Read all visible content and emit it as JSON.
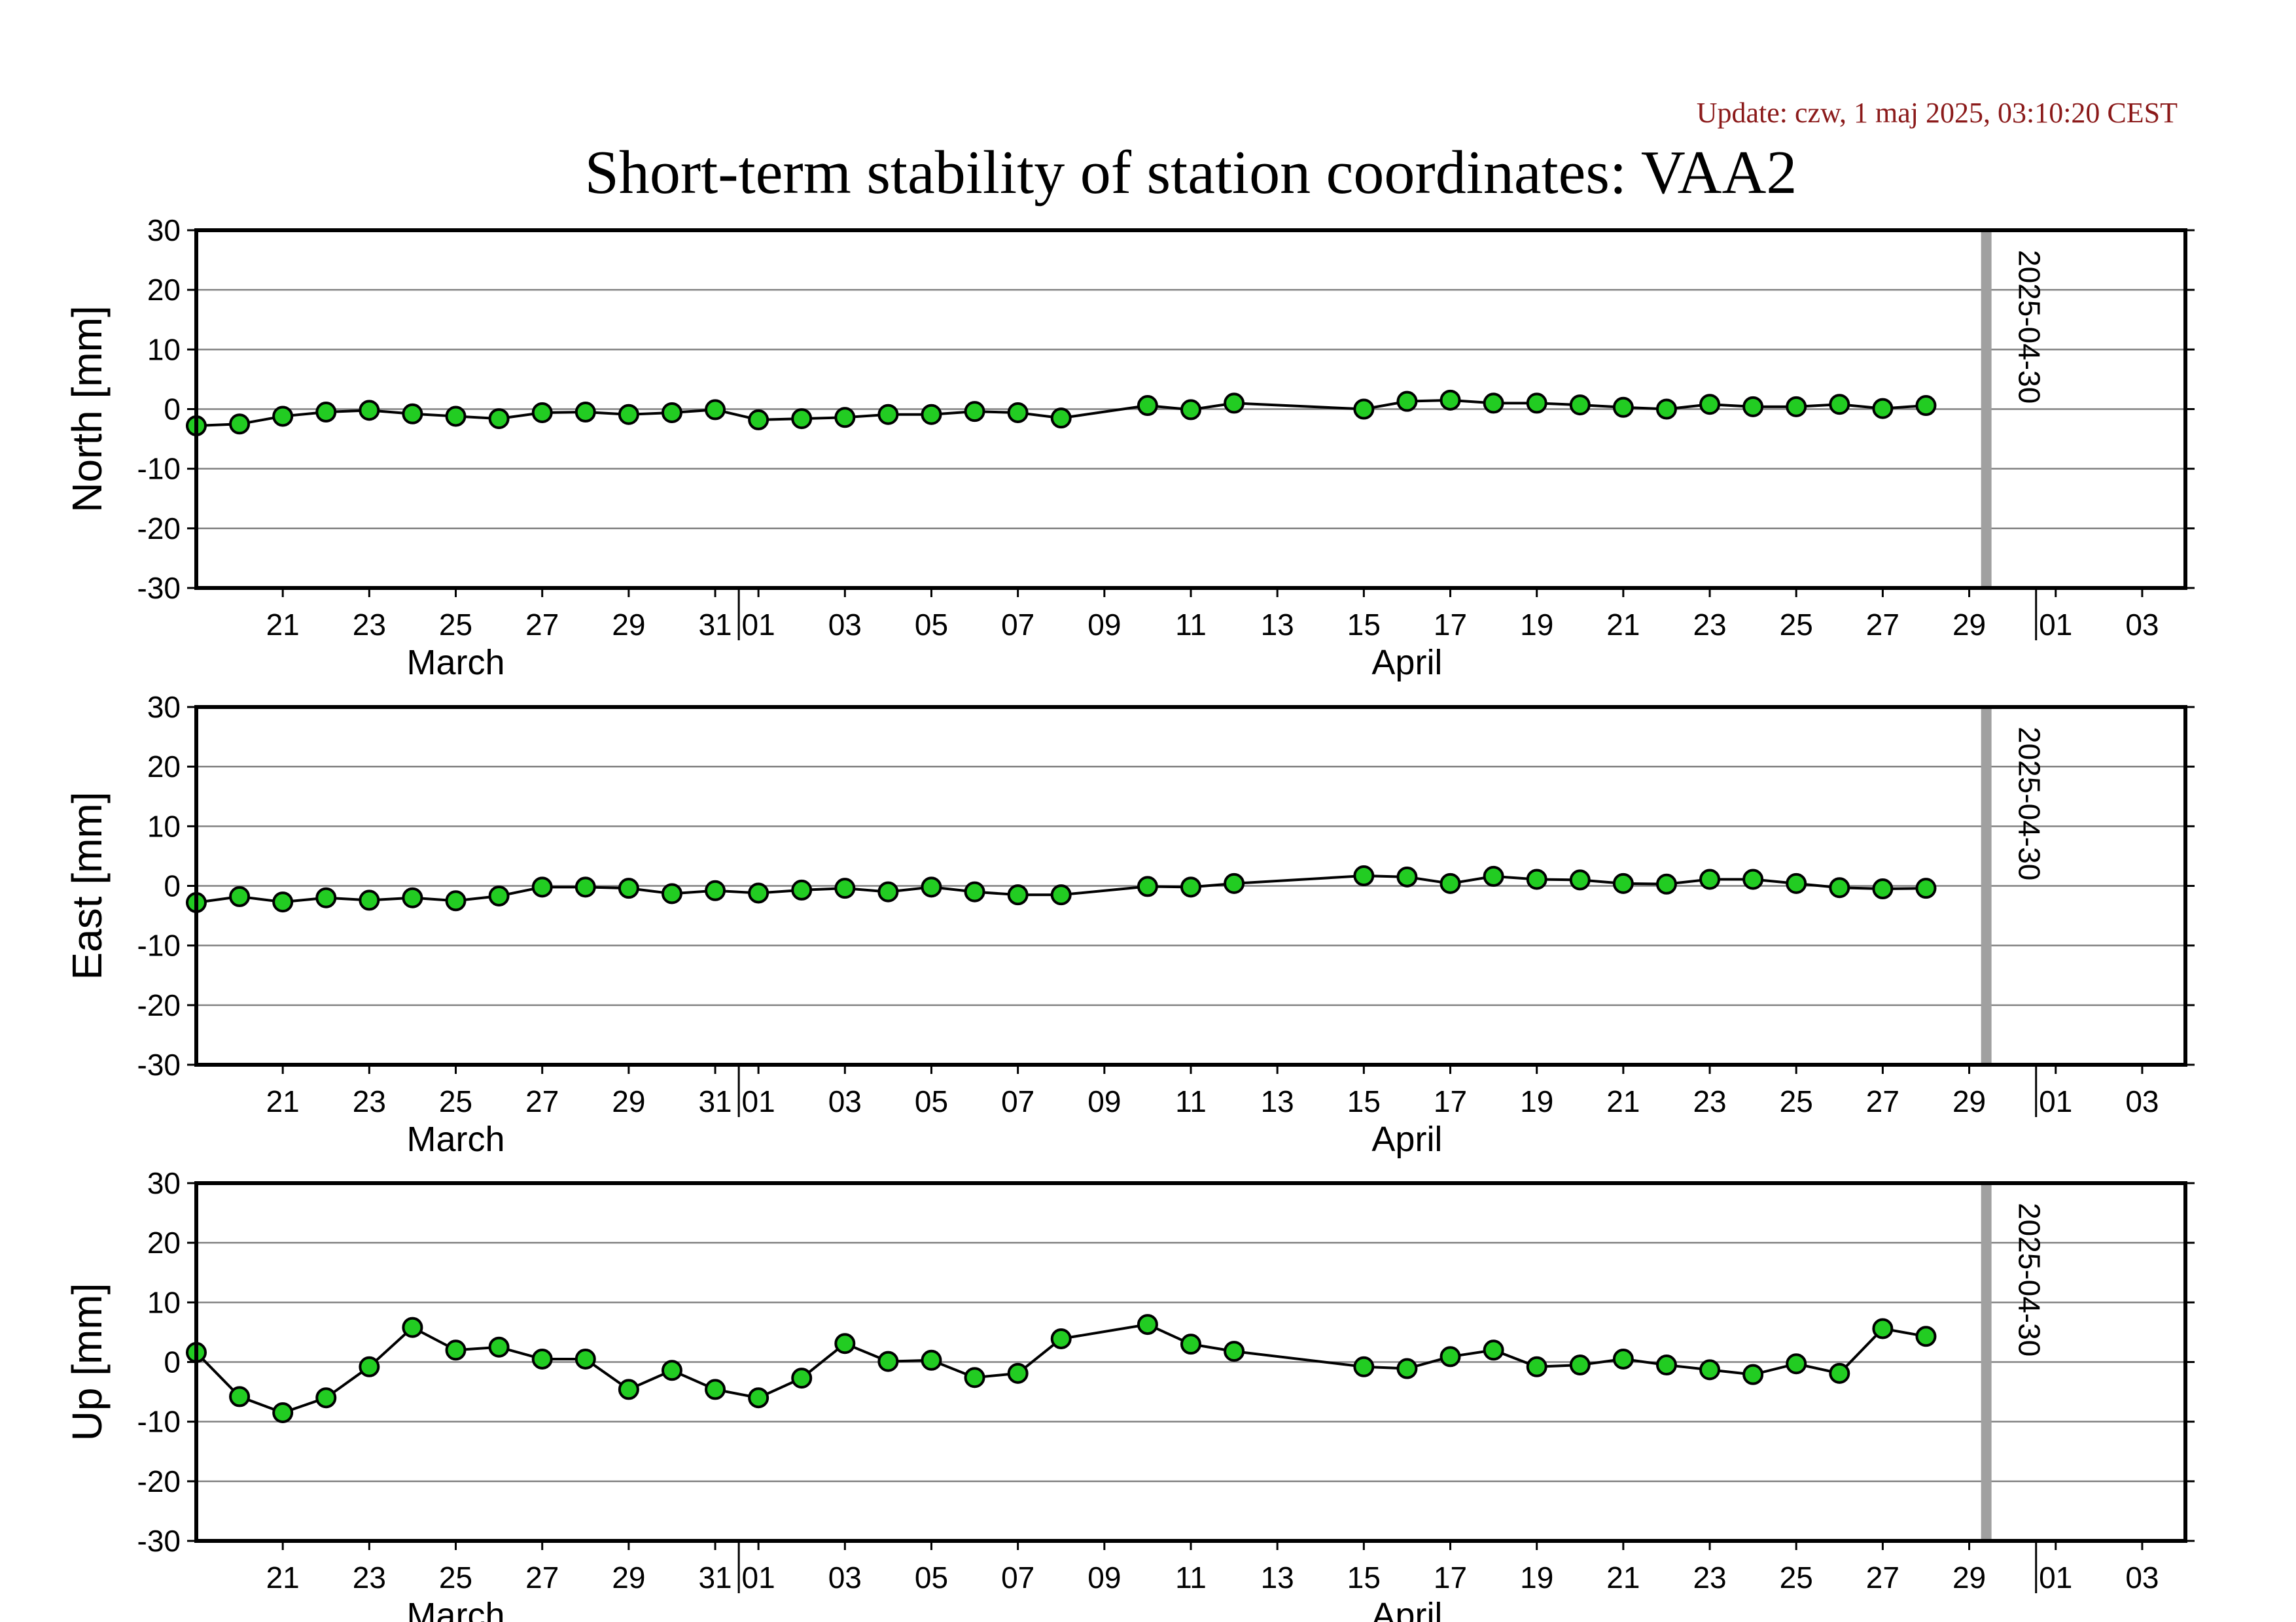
{
  "update_text": "Update: czw, 1 maj 2025, 03:10:20 CEST",
  "chart_data": {
    "type": "line",
    "title": "Short-term stability of station coordinates: VAA2",
    "x_range": [
      "2025-03-19",
      "2025-05-04"
    ],
    "ylim": [
      -30,
      30
    ],
    "yticks": [
      -30,
      -20,
      -10,
      0,
      10,
      20,
      30
    ],
    "grid": "horizontal",
    "x_tick_labels": [
      {
        "date": "2025-03-21",
        "label": "21"
      },
      {
        "date": "2025-03-23",
        "label": "23"
      },
      {
        "date": "2025-03-25",
        "label": "25"
      },
      {
        "date": "2025-03-27",
        "label": "27"
      },
      {
        "date": "2025-03-29",
        "label": "29"
      },
      {
        "date": "2025-03-31",
        "label": "31"
      },
      {
        "date": "2025-04-01",
        "label": "01"
      },
      {
        "date": "2025-04-03",
        "label": "03"
      },
      {
        "date": "2025-04-05",
        "label": "05"
      },
      {
        "date": "2025-04-07",
        "label": "07"
      },
      {
        "date": "2025-04-09",
        "label": "09"
      },
      {
        "date": "2025-04-11",
        "label": "11"
      },
      {
        "date": "2025-04-13",
        "label": "13"
      },
      {
        "date": "2025-04-15",
        "label": "15"
      },
      {
        "date": "2025-04-17",
        "label": "17"
      },
      {
        "date": "2025-04-19",
        "label": "19"
      },
      {
        "date": "2025-04-21",
        "label": "21"
      },
      {
        "date": "2025-04-23",
        "label": "23"
      },
      {
        "date": "2025-04-25",
        "label": "25"
      },
      {
        "date": "2025-04-27",
        "label": "27"
      },
      {
        "date": "2025-04-29",
        "label": "29"
      },
      {
        "date": "2025-05-01",
        "label": "01"
      },
      {
        "date": "2025-05-03",
        "label": "03"
      }
    ],
    "month_boundaries": [
      "2025-04-01",
      "2025-05-01"
    ],
    "month_labels": [
      {
        "date": "2025-03-25",
        "label": "March"
      },
      {
        "date": "2025-04-16",
        "label": "April"
      }
    ],
    "marker": {
      "date": "2025-04-30",
      "label": "2025-04-30",
      "color": "#a0a0a0"
    },
    "point_color": "#22cc22",
    "dates": [
      "2025-03-19",
      "2025-03-20",
      "2025-03-21",
      "2025-03-22",
      "2025-03-23",
      "2025-03-24",
      "2025-03-25",
      "2025-03-26",
      "2025-03-27",
      "2025-03-28",
      "2025-03-29",
      "2025-03-30",
      "2025-03-31",
      "2025-04-01",
      "2025-04-02",
      "2025-04-03",
      "2025-04-04",
      "2025-04-05",
      "2025-04-06",
      "2025-04-07",
      "2025-04-08",
      "2025-04-10",
      "2025-04-11",
      "2025-04-12",
      "2025-04-15",
      "2025-04-16",
      "2025-04-17",
      "2025-04-18",
      "2025-04-19",
      "2025-04-20",
      "2025-04-21",
      "2025-04-22",
      "2025-04-23",
      "2025-04-24",
      "2025-04-25",
      "2025-04-26",
      "2025-04-27",
      "2025-04-28"
    ],
    "series": [
      {
        "name": "North [mm]",
        "values": [
          -2.8,
          -2.5,
          -1.2,
          -0.5,
          -0.2,
          -0.8,
          -1.2,
          -1.6,
          -0.6,
          -0.5,
          -0.9,
          -0.6,
          -0.1,
          -1.8,
          -1.6,
          -1.4,
          -0.9,
          -0.9,
          -0.4,
          -0.6,
          -1.5,
          0.6,
          -0.1,
          1.0,
          0.0,
          1.3,
          1.5,
          1.0,
          1.0,
          0.7,
          0.3,
          0.0,
          0.8,
          0.4,
          0.4,
          0.8,
          0.1,
          0.6
        ]
      },
      {
        "name": "East [mm]",
        "values": [
          -2.8,
          -1.8,
          -2.7,
          -2.0,
          -2.4,
          -2.0,
          -2.5,
          -1.7,
          -0.2,
          -0.2,
          -0.4,
          -1.3,
          -0.8,
          -1.2,
          -0.7,
          -0.4,
          -1.0,
          -0.2,
          -1.0,
          -1.5,
          -1.5,
          -0.1,
          -0.2,
          0.4,
          1.7,
          1.5,
          0.4,
          1.6,
          1.1,
          1.0,
          0.4,
          0.3,
          1.1,
          1.1,
          0.4,
          -0.3,
          -0.5,
          -0.4
        ]
      },
      {
        "name": "Up [mm]",
        "values": [
          1.6,
          -5.8,
          -8.5,
          -6.0,
          -0.8,
          5.8,
          2.0,
          2.5,
          0.5,
          0.5,
          -4.6,
          -1.4,
          -4.6,
          -6.0,
          -2.7,
          3.1,
          0.1,
          0.3,
          -2.6,
          -1.9,
          3.9,
          6.3,
          3.0,
          1.8,
          -0.8,
          -1.1,
          0.9,
          2.0,
          -0.8,
          -0.5,
          0.5,
          -0.5,
          -1.3,
          -2.1,
          -0.3,
          -1.9,
          5.6,
          4.3
        ]
      }
    ]
  }
}
